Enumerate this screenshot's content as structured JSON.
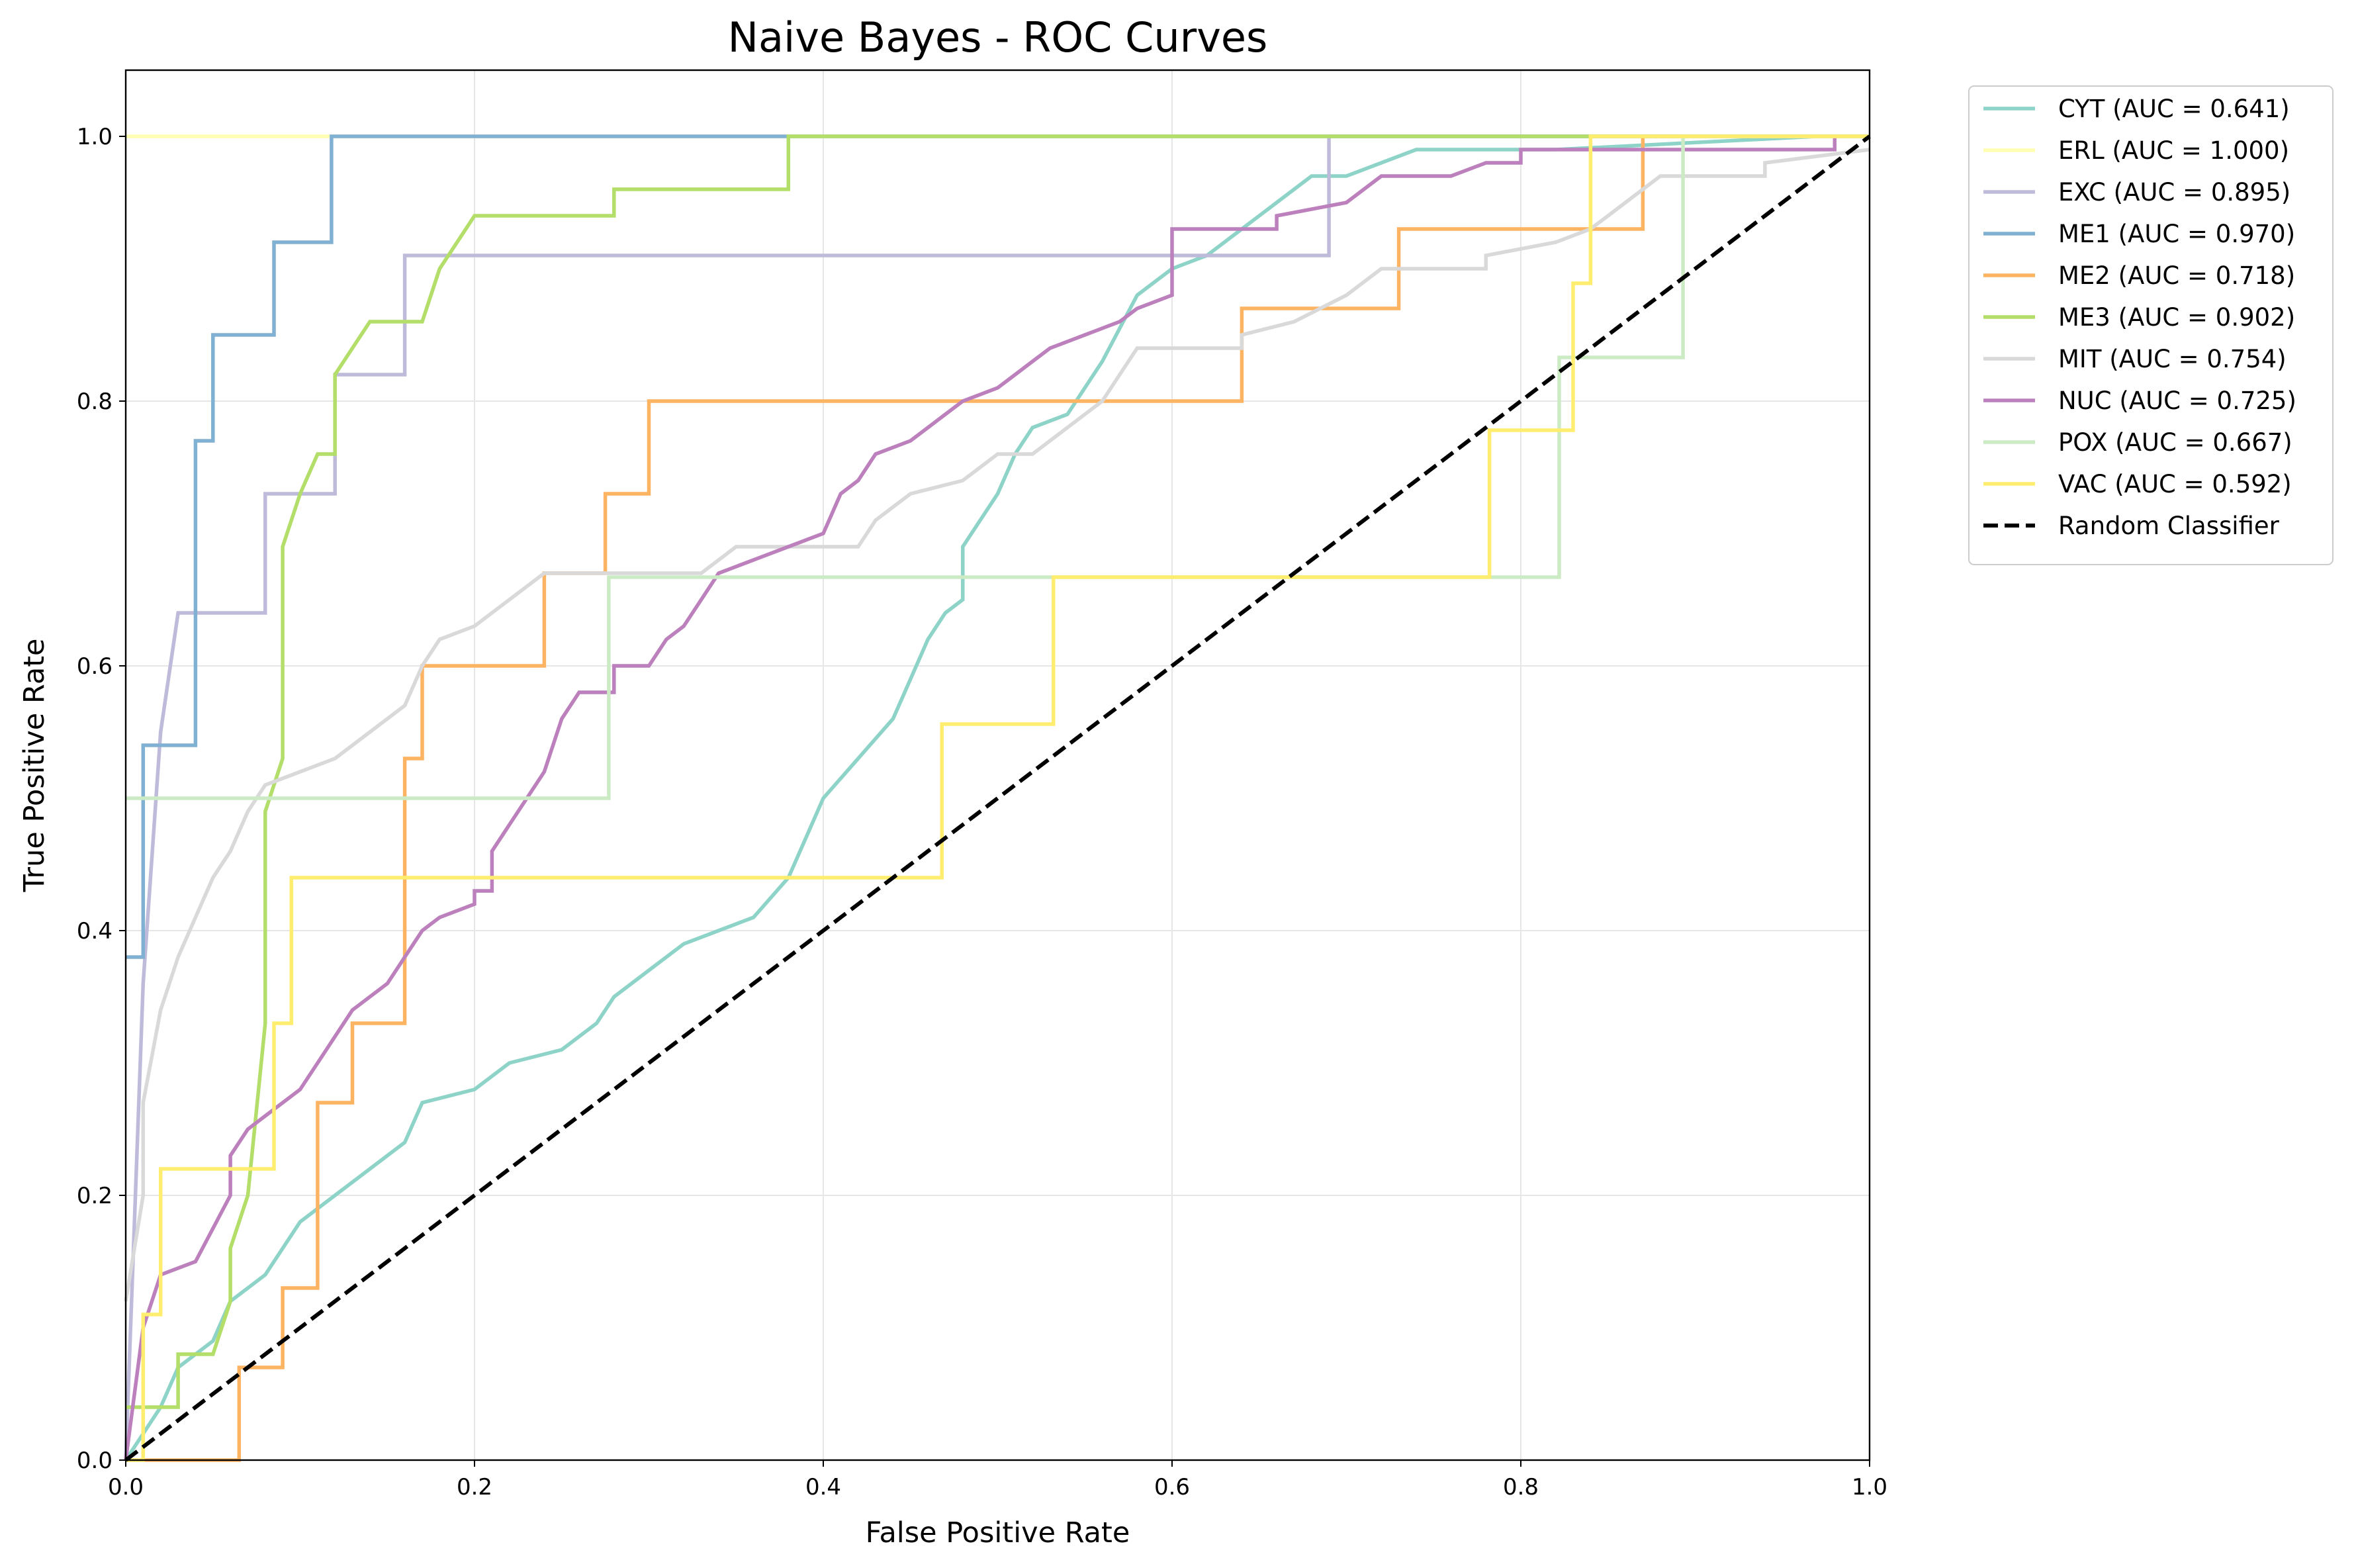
{
  "chart_data": {
    "type": "line",
    "title": "Naive Bayes - ROC Curves",
    "xlabel": "False Positive Rate",
    "ylabel": "True Positive Rate",
    "xlim": [
      0,
      1
    ],
    "ylim": [
      0,
      1.05
    ],
    "xticks": [
      "0.0",
      "0.2",
      "0.4",
      "0.6",
      "0.8",
      "1.0"
    ],
    "yticks": [
      "0.0",
      "0.2",
      "0.4",
      "0.6",
      "0.8",
      "1.0"
    ],
    "grid": true,
    "legend_position": "outside-top-right",
    "series": [
      {
        "name": "CYT (AUC = 0.641)",
        "color": "#8dd3c7",
        "points": [
          [
            0,
            0
          ],
          [
            0.02,
            0.04
          ],
          [
            0.03,
            0.07
          ],
          [
            0.05,
            0.09
          ],
          [
            0.06,
            0.12
          ],
          [
            0.08,
            0.14
          ],
          [
            0.1,
            0.18
          ],
          [
            0.12,
            0.2
          ],
          [
            0.14,
            0.22
          ],
          [
            0.16,
            0.24
          ],
          [
            0.17,
            0.27
          ],
          [
            0.2,
            0.28
          ],
          [
            0.22,
            0.3
          ],
          [
            0.25,
            0.31
          ],
          [
            0.27,
            0.33
          ],
          [
            0.28,
            0.35
          ],
          [
            0.3,
            0.37
          ],
          [
            0.32,
            0.39
          ],
          [
            0.34,
            0.4
          ],
          [
            0.36,
            0.41
          ],
          [
            0.38,
            0.44
          ],
          [
            0.39,
            0.47
          ],
          [
            0.4,
            0.5
          ],
          [
            0.42,
            0.53
          ],
          [
            0.44,
            0.56
          ],
          [
            0.45,
            0.59
          ],
          [
            0.46,
            0.62
          ],
          [
            0.47,
            0.64
          ],
          [
            0.48,
            0.65
          ],
          [
            0.48,
            0.69
          ],
          [
            0.5,
            0.73
          ],
          [
            0.51,
            0.76
          ],
          [
            0.52,
            0.78
          ],
          [
            0.54,
            0.79
          ],
          [
            0.56,
            0.83
          ],
          [
            0.58,
            0.88
          ],
          [
            0.6,
            0.9
          ],
          [
            0.62,
            0.91
          ],
          [
            0.64,
            0.93
          ],
          [
            0.66,
            0.95
          ],
          [
            0.68,
            0.97
          ],
          [
            0.7,
            0.97
          ],
          [
            0.72,
            0.98
          ],
          [
            0.74,
            0.99
          ],
          [
            0.8,
            0.99
          ],
          [
            0.82,
            0.99
          ],
          [
            0.97,
            1.0
          ]
        ]
      },
      {
        "name": "ERL (AUC = 1.000)",
        "color": "#ffffb3",
        "points": [
          [
            0,
            1.0
          ],
          [
            1,
            1.0
          ]
        ]
      },
      {
        "name": "EXC (AUC = 0.895)",
        "color": "#bebada",
        "points": [
          [
            0,
            0
          ],
          [
            0.01,
            0.36
          ],
          [
            0.02,
            0.55
          ],
          [
            0.03,
            0.64
          ],
          [
            0.08,
            0.64
          ],
          [
            0.08,
            0.73
          ],
          [
            0.12,
            0.73
          ],
          [
            0.12,
            0.82
          ],
          [
            0.16,
            0.82
          ],
          [
            0.16,
            0.91
          ],
          [
            0.69,
            0.91
          ],
          [
            0.69,
            1.0
          ],
          [
            1,
            1.0
          ]
        ]
      },
      {
        "name": "ME1 (AUC = 0.970)",
        "color": "#80b1d3",
        "points": [
          [
            0,
            0.38
          ],
          [
            0.01,
            0.38
          ],
          [
            0.01,
            0.54
          ],
          [
            0.04,
            0.54
          ],
          [
            0.04,
            0.69
          ],
          [
            0.04,
            0.77
          ],
          [
            0.05,
            0.77
          ],
          [
            0.05,
            0.85
          ],
          [
            0.085,
            0.85
          ],
          [
            0.085,
            0.92
          ],
          [
            0.118,
            0.92
          ],
          [
            0.118,
            1.0
          ],
          [
            1,
            1.0
          ]
        ]
      },
      {
        "name": "ME2 (AUC = 0.718)",
        "color": "#fdb462",
        "points": [
          [
            0,
            0
          ],
          [
            0.065,
            0
          ],
          [
            0.065,
            0.07
          ],
          [
            0.09,
            0.07
          ],
          [
            0.09,
            0.13
          ],
          [
            0.11,
            0.13
          ],
          [
            0.11,
            0.27
          ],
          [
            0.13,
            0.27
          ],
          [
            0.13,
            0.33
          ],
          [
            0.16,
            0.33
          ],
          [
            0.16,
            0.53
          ],
          [
            0.17,
            0.53
          ],
          [
            0.17,
            0.6
          ],
          [
            0.24,
            0.6
          ],
          [
            0.24,
            0.67
          ],
          [
            0.275,
            0.67
          ],
          [
            0.275,
            0.73
          ],
          [
            0.3,
            0.73
          ],
          [
            0.3,
            0.8
          ],
          [
            0.64,
            0.8
          ],
          [
            0.64,
            0.87
          ],
          [
            0.73,
            0.87
          ],
          [
            0.73,
            0.93
          ],
          [
            0.87,
            0.93
          ],
          [
            0.87,
            1.0
          ],
          [
            1,
            1.0
          ]
        ]
      },
      {
        "name": "ME3 (AUC = 0.902)",
        "color": "#b3de69",
        "points": [
          [
            0,
            0.04
          ],
          [
            0.03,
            0.04
          ],
          [
            0.03,
            0.08
          ],
          [
            0.05,
            0.08
          ],
          [
            0.06,
            0.12
          ],
          [
            0.06,
            0.16
          ],
          [
            0.07,
            0.2
          ],
          [
            0.08,
            0.33
          ],
          [
            0.08,
            0.45
          ],
          [
            0.08,
            0.49
          ],
          [
            0.09,
            0.53
          ],
          [
            0.09,
            0.69
          ],
          [
            0.1,
            0.73
          ],
          [
            0.11,
            0.76
          ],
          [
            0.12,
            0.76
          ],
          [
            0.12,
            0.82
          ],
          [
            0.13,
            0.84
          ],
          [
            0.14,
            0.86
          ],
          [
            0.17,
            0.86
          ],
          [
            0.18,
            0.9
          ],
          [
            0.19,
            0.92
          ],
          [
            0.2,
            0.94
          ],
          [
            0.28,
            0.94
          ],
          [
            0.28,
            0.96
          ],
          [
            0.38,
            0.96
          ],
          [
            0.38,
            1.0
          ],
          [
            1,
            1.0
          ]
        ]
      },
      {
        "name": "MIT (AUC = 0.754)",
        "color": "#d9d9d9",
        "points": [
          [
            0,
            0.12
          ],
          [
            0.01,
            0.2
          ],
          [
            0.01,
            0.27
          ],
          [
            0.02,
            0.34
          ],
          [
            0.03,
            0.38
          ],
          [
            0.04,
            0.41
          ],
          [
            0.05,
            0.44
          ],
          [
            0.06,
            0.46
          ],
          [
            0.07,
            0.49
          ],
          [
            0.08,
            0.51
          ],
          [
            0.1,
            0.52
          ],
          [
            0.12,
            0.53
          ],
          [
            0.14,
            0.55
          ],
          [
            0.16,
            0.57
          ],
          [
            0.17,
            0.6
          ],
          [
            0.18,
            0.62
          ],
          [
            0.2,
            0.63
          ],
          [
            0.22,
            0.65
          ],
          [
            0.24,
            0.67
          ],
          [
            0.28,
            0.67
          ],
          [
            0.33,
            0.67
          ],
          [
            0.35,
            0.69
          ],
          [
            0.42,
            0.69
          ],
          [
            0.43,
            0.71
          ],
          [
            0.45,
            0.73
          ],
          [
            0.48,
            0.74
          ],
          [
            0.5,
            0.76
          ],
          [
            0.52,
            0.76
          ],
          [
            0.56,
            0.8
          ],
          [
            0.57,
            0.82
          ],
          [
            0.58,
            0.84
          ],
          [
            0.64,
            0.84
          ],
          [
            0.64,
            0.85
          ],
          [
            0.67,
            0.86
          ],
          [
            0.7,
            0.88
          ],
          [
            0.72,
            0.9
          ],
          [
            0.78,
            0.9
          ],
          [
            0.78,
            0.91
          ],
          [
            0.82,
            0.92
          ],
          [
            0.84,
            0.93
          ],
          [
            0.85,
            0.94
          ],
          [
            0.86,
            0.95
          ],
          [
            0.88,
            0.97
          ],
          [
            0.94,
            0.97
          ],
          [
            0.94,
            0.98
          ],
          [
            1,
            0.99
          ]
        ]
      },
      {
        "name": "NUC (AUC = 0.725)",
        "color": "#bc80bd",
        "points": [
          [
            0,
            0
          ],
          [
            0.01,
            0.1
          ],
          [
            0.02,
            0.14
          ],
          [
            0.04,
            0.15
          ],
          [
            0.06,
            0.2
          ],
          [
            0.06,
            0.23
          ],
          [
            0.07,
            0.25
          ],
          [
            0.08,
            0.26
          ],
          [
            0.1,
            0.28
          ],
          [
            0.11,
            0.3
          ],
          [
            0.12,
            0.32
          ],
          [
            0.13,
            0.34
          ],
          [
            0.15,
            0.36
          ],
          [
            0.16,
            0.38
          ],
          [
            0.17,
            0.4
          ],
          [
            0.18,
            0.41
          ],
          [
            0.2,
            0.42
          ],
          [
            0.2,
            0.43
          ],
          [
            0.21,
            0.43
          ],
          [
            0.21,
            0.46
          ],
          [
            0.22,
            0.48
          ],
          [
            0.23,
            0.5
          ],
          [
            0.24,
            0.52
          ],
          [
            0.25,
            0.56
          ],
          [
            0.26,
            0.58
          ],
          [
            0.28,
            0.58
          ],
          [
            0.28,
            0.6
          ],
          [
            0.3,
            0.6
          ],
          [
            0.31,
            0.62
          ],
          [
            0.32,
            0.63
          ],
          [
            0.33,
            0.65
          ],
          [
            0.34,
            0.67
          ],
          [
            0.36,
            0.68
          ],
          [
            0.38,
            0.69
          ],
          [
            0.4,
            0.7
          ],
          [
            0.41,
            0.73
          ],
          [
            0.42,
            0.74
          ],
          [
            0.43,
            0.76
          ],
          [
            0.45,
            0.77
          ],
          [
            0.46,
            0.78
          ],
          [
            0.47,
            0.79
          ],
          [
            0.48,
            0.8
          ],
          [
            0.5,
            0.81
          ],
          [
            0.51,
            0.82
          ],
          [
            0.52,
            0.83
          ],
          [
            0.53,
            0.84
          ],
          [
            0.55,
            0.85
          ],
          [
            0.57,
            0.86
          ],
          [
            0.58,
            0.87
          ],
          [
            0.6,
            0.88
          ],
          [
            0.6,
            0.93
          ],
          [
            0.66,
            0.93
          ],
          [
            0.66,
            0.94
          ],
          [
            0.7,
            0.95
          ],
          [
            0.72,
            0.97
          ],
          [
            0.76,
            0.97
          ],
          [
            0.78,
            0.98
          ],
          [
            0.8,
            0.98
          ],
          [
            0.8,
            0.99
          ],
          [
            0.98,
            0.99
          ],
          [
            0.98,
            1.0
          ]
        ]
      },
      {
        "name": "POX (AUC = 0.667)",
        "color": "#ccebc5",
        "points": [
          [
            0,
            0.5
          ],
          [
            0.277,
            0.5
          ],
          [
            0.277,
            0.667
          ],
          [
            0.822,
            0.667
          ],
          [
            0.822,
            0.833
          ],
          [
            0.893,
            0.833
          ],
          [
            0.893,
            1.0
          ],
          [
            1,
            1.0
          ]
        ]
      },
      {
        "name": "VAC (AUC = 0.592)",
        "color": "#ffed6f",
        "points": [
          [
            0,
            0
          ],
          [
            0.01,
            0
          ],
          [
            0.01,
            0.11
          ],
          [
            0.02,
            0.11
          ],
          [
            0.02,
            0.22
          ],
          [
            0.085,
            0.22
          ],
          [
            0.085,
            0.33
          ],
          [
            0.095,
            0.33
          ],
          [
            0.095,
            0.44
          ],
          [
            0.468,
            0.44
          ],
          [
            0.468,
            0.556
          ],
          [
            0.532,
            0.556
          ],
          [
            0.532,
            0.667
          ],
          [
            0.782,
            0.667
          ],
          [
            0.782,
            0.778
          ],
          [
            0.83,
            0.778
          ],
          [
            0.83,
            0.889
          ],
          [
            0.84,
            0.889
          ],
          [
            0.84,
            1.0
          ],
          [
            1,
            1.0
          ]
        ]
      },
      {
        "name": "Random Classifier",
        "color": "#000000",
        "dashed": true,
        "points": [
          [
            0,
            0
          ],
          [
            1,
            1
          ]
        ]
      }
    ]
  }
}
